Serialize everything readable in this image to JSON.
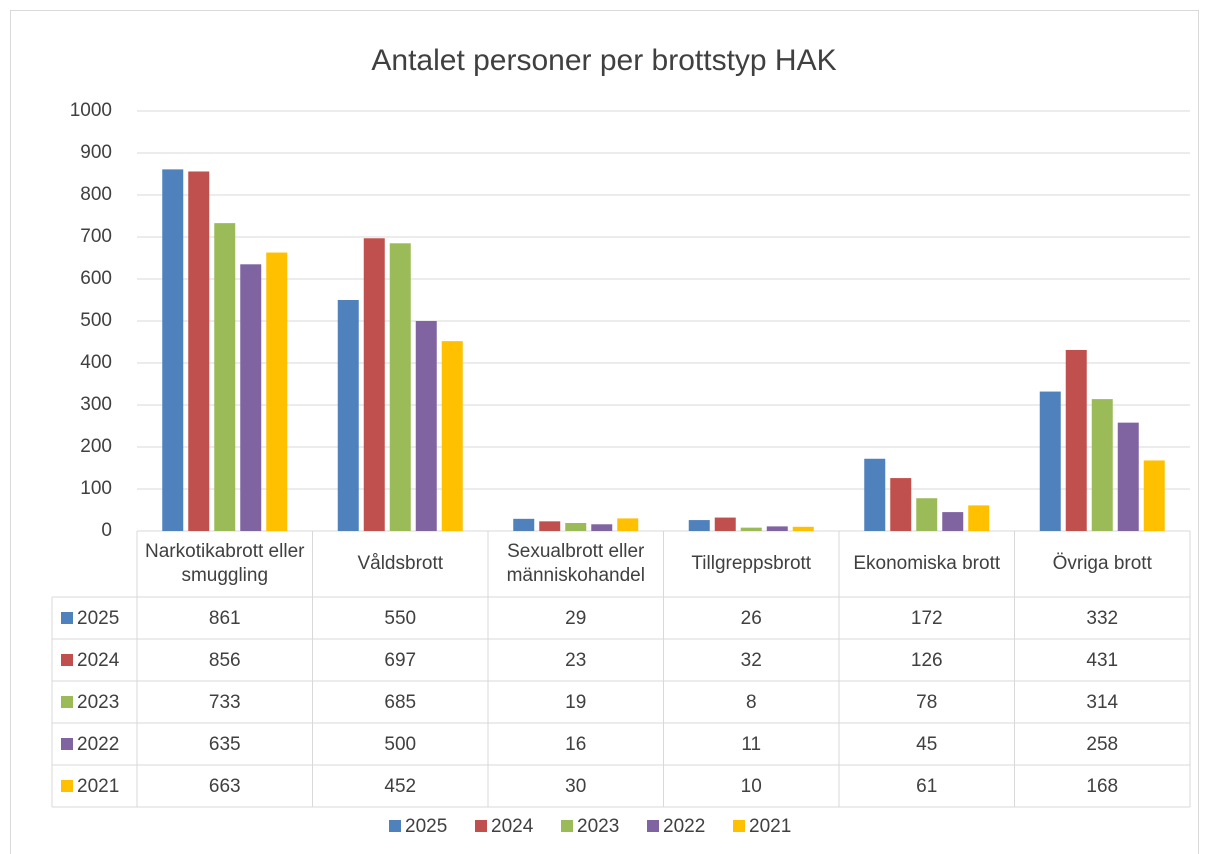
{
  "chart_data": {
    "type": "bar",
    "title": "Antalet personer per brottstyp HAK",
    "categories": [
      "Narkotikabrott eller smuggling",
      "Våldsbrott",
      "Sexualbrott eller människohandel",
      "Tillgreppsbrott",
      "Ekonomiska brott",
      "Övriga brott"
    ],
    "series": [
      {
        "name": "2025",
        "color": "#4f81bd",
        "values": [
          861,
          550,
          29,
          26,
          172,
          332
        ]
      },
      {
        "name": "2024",
        "color": "#c0504d",
        "values": [
          856,
          697,
          23,
          32,
          126,
          431
        ]
      },
      {
        "name": "2023",
        "color": "#9bbb59",
        "values": [
          733,
          685,
          19,
          8,
          78,
          314
        ]
      },
      {
        "name": "2022",
        "color": "#8064a2",
        "values": [
          635,
          500,
          16,
          11,
          45,
          258
        ]
      },
      {
        "name": "2021",
        "color": "#ffc000",
        "values": [
          663,
          452,
          30,
          10,
          61,
          168
        ]
      }
    ],
    "ylim": [
      0,
      1000
    ],
    "yticks": [
      0,
      100,
      200,
      300,
      400,
      500,
      600,
      700,
      800,
      900,
      1000
    ],
    "grid": true,
    "data_table": true,
    "legend": "bottom"
  }
}
